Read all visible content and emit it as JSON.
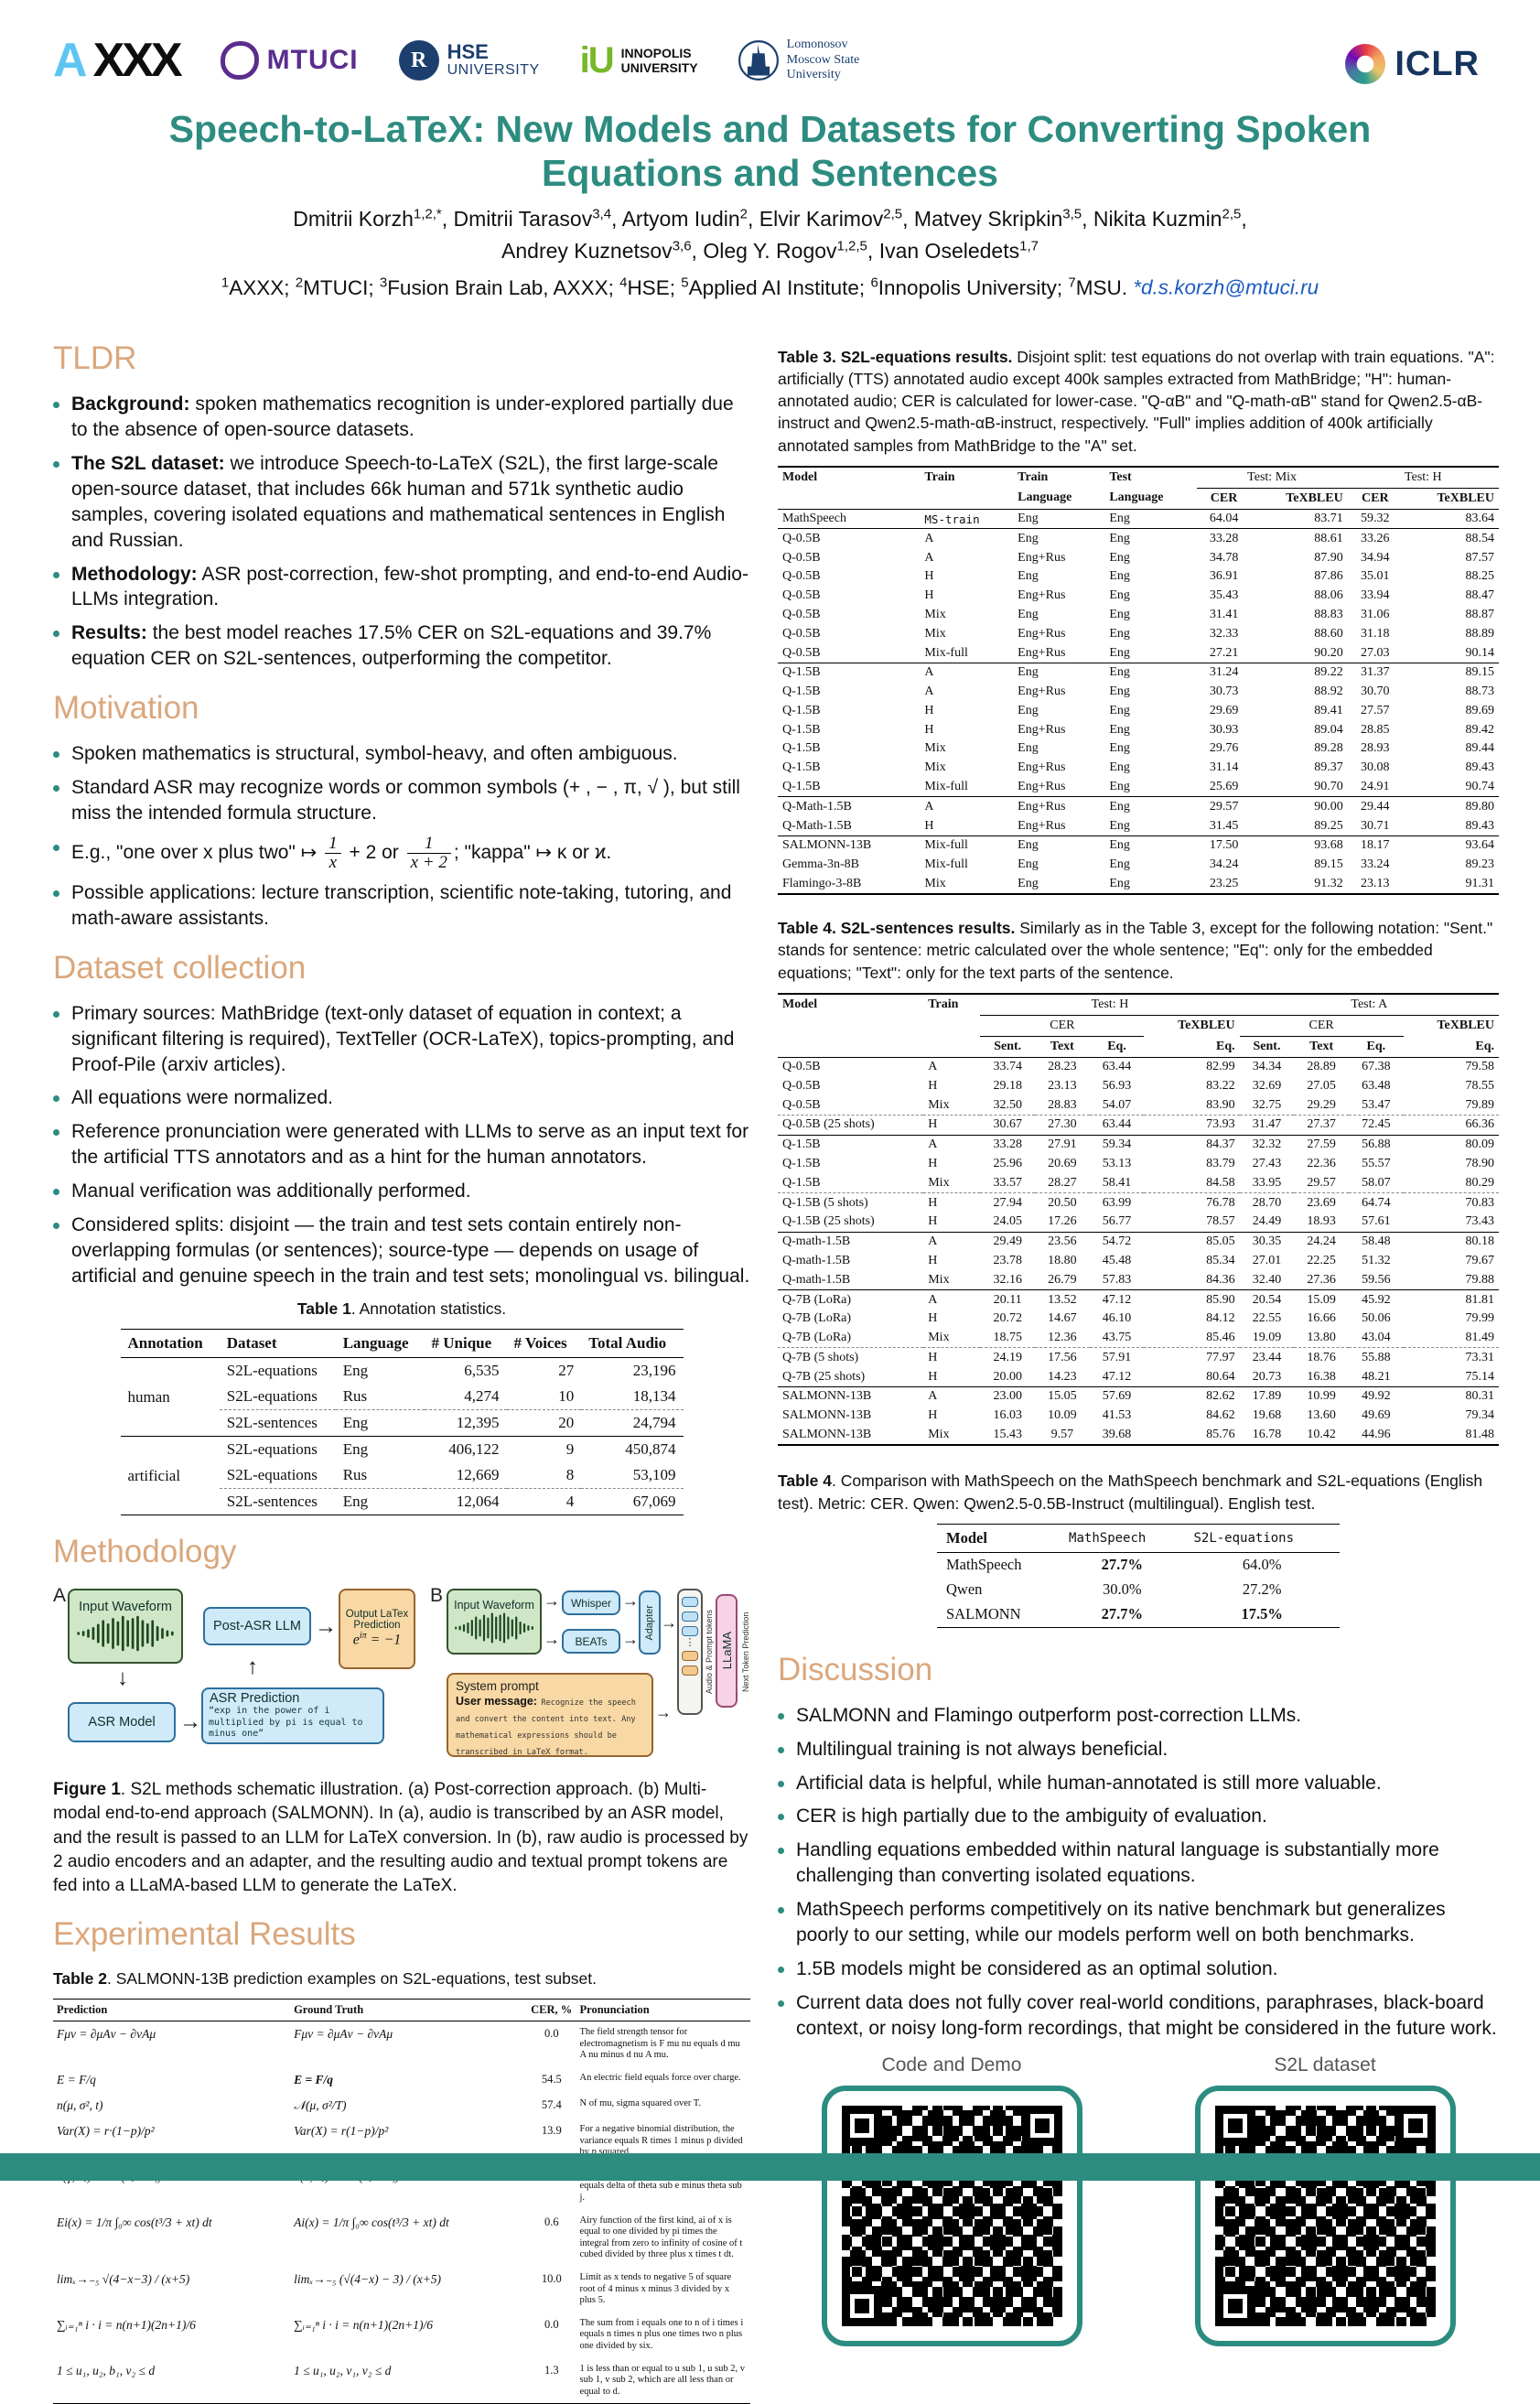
{
  "accent": "#2d8c80",
  "heading_color": "#daa77c",
  "header": {
    "logos": {
      "axxx_a": "A",
      "axxx_rest": "XXX",
      "mtuci": "MTUCI",
      "hse1": "HSE",
      "hse2": "UNIVERSITY",
      "inno1": "INNOPOLIS",
      "inno2": "UNIVERSITY",
      "msu1": "Lomonosov",
      "msu2": "Moscow State",
      "msu3": "University",
      "iclr": "ICLR"
    },
    "title1": "Speech-to-LaTeX: New Models and Datasets for Converting Spoken",
    "title2": "Equations and Sentences",
    "authors1": [
      {
        "n": "Dmitrii Korzh",
        "s": "1,2,*"
      },
      {
        "n": "Dmitrii Tarasov",
        "s": "3,4"
      },
      {
        "n": "Artyom Iudin",
        "s": "2"
      },
      {
        "n": "Elvir Karimov",
        "s": "2,5"
      },
      {
        "n": "Matvey Skripkin",
        "s": "3,5"
      },
      {
        "n": "Nikita Kuzmin",
        "s": "2,5"
      }
    ],
    "authors2": [
      {
        "n": "Andrey Kuznetsov",
        "s": "3,6"
      },
      {
        "n": "Oleg Y. Rogov",
        "s": "1,2,5"
      },
      {
        "n": "Ivan Oseledets",
        "s": "1,7"
      }
    ],
    "affils": [
      {
        "s": "1",
        "n": "AXXX; "
      },
      {
        "s": "2",
        "n": "MTUCI; "
      },
      {
        "s": "3",
        "n": "Fusion Brain Lab, AXXX; "
      },
      {
        "s": "4",
        "n": "HSE; "
      },
      {
        "s": "5",
        "n": "Applied AI Institute; "
      },
      {
        "s": "6",
        "n": "Innopolis University; "
      },
      {
        "s": "7",
        "n": "MSU. "
      }
    ],
    "email": "*d.s.korzh@mtuci.ru"
  },
  "sections": {
    "tldr": "TLDR",
    "motivation": "Motivation",
    "dataset": "Dataset collection",
    "methodology": "Methodology",
    "results": "Experimental Results",
    "discussion": "Discussion"
  },
  "tldr": {
    "items": [
      {
        "b": "Background:",
        "t": "spoken mathematics recognition is under-explored partially due to the absence of open-source datasets."
      },
      {
        "b": "The S2L dataset:",
        "t": "we introduce Speech-to-LaTeX (S2L), the first large-scale open-source dataset, that includes 66k human and 571k synthetic audio samples, covering isolated equations and mathematical sentences in English and Russian."
      },
      {
        "b": "Methodology:",
        "t": "ASR post-correction, few-shot prompting, and end-to-end Audio-LLMs integration."
      },
      {
        "b": "Results:",
        "t": "the best model reaches 17.5% CER on S2L-equations and 39.7% equation CER on S2L-sentences, outperforming the competitor."
      }
    ]
  },
  "motivation": {
    "items": [
      {
        "t": "Spoken mathematics is structural, symbol-heavy, and often ambiguous."
      },
      {
        "t": "Standard ASR may recognize words or common symbols (+ , − , π, √ ), but still miss the intended formula structure."
      },
      {
        "m": {
          "t1": "E.g., \"one over x plus two\"  ↦ ",
          "f1": {
            "n": "1",
            "d": "x"
          },
          "t2": " + 2 or ",
          "f2": {
            "n": "1",
            "d": "x + 2"
          },
          "t3": "; \"kappa\" ↦ κ or ϰ."
        }
      },
      {
        "t": "Possible applications: lecture transcription, scientific note-taking, tutoring, and math-aware assistants."
      }
    ]
  },
  "dataset": {
    "items": [
      {
        "t": "Primary sources: MathBridge (text-only dataset of equation in context; a significant filtering is required), TextTeller (OCR-LaTeX), topics-prompting, and Proof-Pile (arxiv articles)."
      },
      {
        "t": "All equations were normalized."
      },
      {
        "t": "Reference pronunciation were generated with LLMs to serve as an input text for the artificial TTS annotators and as a hint for the human annotators."
      },
      {
        "t": "Manual verification was additionally performed."
      },
      {
        "t": "Considered splits: disjoint — the train and test sets contain entirely non-overlapping formulas (or sentences); source-type — depends on usage of artificial and genuine speech in the train and test sets; monolingual vs. bilingual."
      }
    ]
  },
  "discussion": {
    "items": [
      {
        "t": "SALMONN and Flamingo outperform post-correction LLMs."
      },
      {
        "t": "Multilingual training is not always beneficial."
      },
      {
        "t": "Artificial data is helpful, while human-annotated is still more valuable."
      },
      {
        "t": "CER is high partially due to the ambiguity of evaluation."
      },
      {
        "t": "Handling equations embedded within natural language is substantially more challenging than converting isolated equations."
      },
      {
        "t": "MathSpeech performs competitively on its native benchmark but generalizes poorly to our setting, while our models perform well on both benchmarks."
      },
      {
        "t": "1.5B models might be considered as an optimal solution."
      },
      {
        "t": "Current data does not fully cover real-world conditions, paraphrases, black-board context, or noisy long-form recordings, that might be considered in the future work."
      }
    ]
  },
  "t1": {
    "cap_b": "Table 1",
    "cap_t": ". Annotation statistics.",
    "h": [
      "Annotation",
      "Dataset",
      "Language",
      "# Unique",
      "# Voices",
      "Total Audio"
    ],
    "groups": [
      {
        "label": "human",
        "rows": [
          [
            "S2L-equations",
            "Eng",
            "6,535",
            "27",
            "23,196"
          ],
          [
            "S2L-equations",
            "Rus",
            "4,274",
            "10",
            "18,134"
          ],
          [
            "S2L-sentences",
            "Eng",
            "12,395",
            "20",
            "24,794"
          ]
        ]
      },
      {
        "label": "artificial",
        "rows": [
          [
            "S2L-equations",
            "Eng",
            "406,122",
            "9",
            "450,874"
          ],
          [
            "S2L-equations",
            "Rus",
            "12,669",
            "8",
            "53,109"
          ],
          [
            "S2L-sentences",
            "Eng",
            "12,064",
            "4",
            "67,069"
          ]
        ]
      }
    ]
  },
  "fig": {
    "label_a": "A",
    "label_b": "B",
    "input_waveform": "Input Waveform",
    "asr_model": "ASR Model",
    "post_asr": "Post-ASR LLM",
    "out_title": "Output LaTex Prediction",
    "out_base": "e",
    "out_sup": "iπ",
    "out_eq": "= −1",
    "asr_pred_title": "ASR Prediction",
    "asr_pred_quote": "“exp in the power of i multiplied by pi is equal to minus one”",
    "whisper": "Whisper",
    "beats": "BEATs",
    "adapter": "Adapter",
    "llama": "LLaMA",
    "tokens_label": "Audio & Prompt tokens",
    "next_label": "Next Token Prediction",
    "sys_title": "System prompt",
    "user_label": "User message:",
    "user_text": "Recognize the speech and convert the content into text. Any mathematical expressions should be transcribed in LaTeX format.",
    "cap_b": "Figure 1",
    "cap_t": ". S2L methods schematic illustration. (a) Post-correction approach. (b) Multi-modal end-to-end approach (SALMONN). In (a), audio is transcribed by an ASR model, and the result is passed to an LLM for LaTeX conversion. In (b), raw audio is processed by 2 audio encoders and an adapter, and the resulting audio and textual prompt tokens are fed into a LLaMA-based LLM to generate the LaTeX."
  },
  "t2": {
    "cap_b": "Table 2",
    "cap_t": ". SALMONN-13B prediction examples on S2L-equations, test subset.",
    "h": [
      "Prediction",
      "Ground Truth",
      "CER, %",
      "Pronunciation"
    ],
    "rows": [
      {
        "p": "Fμν = ∂μAν − ∂νAμ",
        "g": "Fμν = ∂μAν − ∂νAμ",
        "gb": false,
        "c": "0.0",
        "pr": "The field strength tensor for electromagnetism is F mu nu equals d mu A nu minus d nu A mu."
      },
      {
        "p": "E = F/q",
        "g": "E = F/q",
        "gb": true,
        "c": "54.5",
        "pr": "An electric field equals force over charge."
      },
      {
        "p": "n(μ, σ², t)",
        "g": "𝒩(μ, σ²/T)",
        "gb": false,
        "c": "57.4",
        "pr": "N of mu, sigma squared over T."
      },
      {
        "p": "Var(X) = r·(1−p)/p²",
        "g": "Var(X) = r(1−p)/p²",
        "gb": false,
        "c": "13.9",
        "pr": "For a negative binomial distribution, the variance equals R times 1 minus p divided by p squared."
      },
      {
        "p": "n(γ, θₑ)/n = δ(θₑ − θⱼ)",
        "g": "n(Γ, θₑ)/n = δ(θₑ − θⱼ)",
        "gb": false,
        "c": "1.1",
        "pr": "N of Gamma, theta sub e divided by N equals delta of theta sub e minus theta sub j."
      },
      {
        "p": "Ei(x) = 1/π ∫₀∞ cos(t³/3 + xt) dt",
        "g": "Ai(x) = 1/π ∫₀∞ cos(t³/3 + xt) dt",
        "gb": false,
        "c": "0.6",
        "pr": "Airy function of the first kind, ai of x is equal to one divided by pi times the integral from zero to infinity of cosine of t cubed divided by three plus x times t dt."
      },
      {
        "p": "limₓ→₋₅ √(4−x−3) / (x+5)",
        "g": "limₓ→₋₅ (√(4−x) − 3) / (x+5)",
        "gb": false,
        "c": "10.0",
        "pr": "Limit as x tends to negative 5 of square root of 4 minus x minus 3 divided by x plus 5."
      },
      {
        "p": "∑ᵢ₌₁ⁿ i · i = n(n+1)(2n+1)/6",
        "g": "∑ᵢ₌₁ⁿ i · i = n(n+1)(2n+1)/6",
        "gb": false,
        "c": "0.0",
        "pr": "The sum from i equals one to n of i times i equals n times n plus one times two n plus one divided by six."
      },
      {
        "p": "1 ≤ u₁, u₂, b₁, v₂ ≤ d",
        "g": "1 ≤ u₁, u₂, v₁, v₂ ≤ d",
        "gb": false,
        "c": "1.3",
        "pr": "1 is less than or equal to u sub 1, u sub 2, v sub 1, v sub 2, which are all less than or equal to d."
      }
    ]
  },
  "t3": {
    "cap_b": "Table 3. S2L-equations results.",
    "cap_t": " Disjoint split: test equations do not overlap with train equations. \"A\": artificially (TTS) annotated audio except 400k samples extracted from MathBridge; \"H\": human-annotated audio; CER is calculated for lower-case. \"Q-αB\" and \"Q-math-αB\" stand for Qwen2.5-αB-instruct and Qwen2.5-math-αB-instruct, respectively. \"Full\" implies addition of 400k artificially annotated samples from MathBridge to the \"A\" set.",
    "h": {
      "model": "Model",
      "train": "Train",
      "language": "Language",
      "test": "Test",
      "mix": "Test: Mix",
      "th": "Test: H",
      "cer": "CER",
      "tex": "TeXBLEU"
    },
    "sections": [
      [
        [
          "MathSpeech",
          "MS-train",
          "Eng",
          "Eng",
          "64.04",
          "83.71",
          "59.32",
          "83.64"
        ]
      ],
      [
        [
          "Q-0.5B",
          "A",
          "Eng",
          "Eng",
          "33.28",
          "88.61",
          "33.26",
          "88.54"
        ],
        [
          "Q-0.5B",
          "A",
          "Eng+Rus",
          "Eng",
          "34.78",
          "87.90",
          "34.94",
          "87.57"
        ],
        [
          "Q-0.5B",
          "H",
          "Eng",
          "Eng",
          "36.91",
          "87.86",
          "35.01",
          "88.25"
        ],
        [
          "Q-0.5B",
          "H",
          "Eng+Rus",
          "Eng",
          "35.43",
          "88.06",
          "33.94",
          "88.47"
        ],
        [
          "Q-0.5B",
          "Mix",
          "Eng",
          "Eng",
          "31.41",
          "88.83",
          "31.06",
          "88.87"
        ],
        [
          "Q-0.5B",
          "Mix",
          "Eng+Rus",
          "Eng",
          "32.33",
          "88.60",
          "31.18",
          "88.89"
        ],
        [
          "Q-0.5B",
          "Mix-full",
          "Eng+Rus",
          "Eng",
          "27.21",
          "90.20",
          "27.03",
          "90.14"
        ]
      ],
      [
        [
          "Q-1.5B",
          "A",
          "Eng",
          "Eng",
          "31.24",
          "89.22",
          "31.37",
          "89.15"
        ],
        [
          "Q-1.5B",
          "A",
          "Eng+Rus",
          "Eng",
          "30.73",
          "88.92",
          "30.70",
          "88.73"
        ],
        [
          "Q-1.5B",
          "H",
          "Eng",
          "Eng",
          "29.69",
          "89.41",
          "27.57",
          "89.69"
        ],
        [
          "Q-1.5B",
          "H",
          "Eng+Rus",
          "Eng",
          "30.93",
          "89.04",
          "28.85",
          "89.42"
        ],
        [
          "Q-1.5B",
          "Mix",
          "Eng",
          "Eng",
          "29.76",
          "89.28",
          "28.93",
          "89.44"
        ],
        [
          "Q-1.5B",
          "Mix",
          "Eng+Rus",
          "Eng",
          "31.14",
          "89.37",
          "30.08",
          "89.43"
        ],
        [
          "Q-1.5B",
          "Mix-full",
          "Eng+Rus",
          "Eng",
          "25.69",
          "90.70",
          "24.91",
          "90.74"
        ]
      ],
      [
        [
          "Q-Math-1.5B",
          "A",
          "Eng+Rus",
          "Eng",
          "29.57",
          "90.00",
          "29.44",
          "89.80"
        ],
        [
          "Q-Math-1.5B",
          "H",
          "Eng+Rus",
          "Eng",
          "31.45",
          "89.25",
          "30.71",
          "89.43"
        ]
      ],
      [
        [
          "SALMONN-13B",
          "Mix-full",
          "Eng",
          "Eng",
          "17.50",
          "93.68",
          "18.17",
          "93.64"
        ],
        [
          "Gemma-3n-8B",
          "Mix-full",
          "Eng",
          "Eng",
          "34.24",
          "89.15",
          "33.24",
          "89.23"
        ],
        [
          "Flamingo-3-8B",
          "Mix",
          "Eng",
          "Eng",
          "23.25",
          "91.32",
          "23.13",
          "91.31"
        ]
      ]
    ]
  },
  "t4": {
    "cap_b": "Table 4. S2L-sentences results.",
    "cap_t": " Similarly as in the Table 3, except for the following notation: \"Sent.\" stands for sentence: metric calculated over the whole sentence; \"Eq\": only for the embedded equations; \"Text\": only for the text parts of the sentence.",
    "h": {
      "model": "Model",
      "train": "Train",
      "testh": "Test: H",
      "testa": "Test: A",
      "cer": "CER",
      "tex": "TeXBLEU",
      "sent": "Sent.",
      "text": "Text",
      "eq": "Eq."
    },
    "sections": [
      [
        [
          "Q-0.5B",
          "A",
          "33.74",
          "28.23",
          "63.44",
          "82.99",
          "34.34",
          "28.89",
          "67.38",
          "79.58"
        ],
        [
          "Q-0.5B",
          "H",
          "29.18",
          "23.13",
          "56.93",
          "83.22",
          "32.69",
          "27.05",
          "63.48",
          "78.55"
        ],
        [
          "Q-0.5B",
          "Mix",
          "32.50",
          "28.83",
          "54.07",
          "83.90",
          "32.75",
          "29.29",
          "53.47",
          "79.89"
        ],
        "---",
        [
          "Q-0.5B (25 shots)",
          "H",
          "30.67",
          "27.30",
          "63.44",
          "73.93",
          "31.47",
          "27.37",
          "72.45",
          "66.36"
        ]
      ],
      [
        [
          "Q-1.5B",
          "A",
          "33.28",
          "27.91",
          "59.34",
          "84.37",
          "32.32",
          "27.59",
          "56.88",
          "80.09"
        ],
        [
          "Q-1.5B",
          "H",
          "25.96",
          "20.69",
          "53.13",
          "83.79",
          "27.43",
          "22.36",
          "55.57",
          "78.90"
        ],
        [
          "Q-1.5B",
          "Mix",
          "33.57",
          "28.27",
          "58.41",
          "84.58",
          "33.95",
          "29.57",
          "58.07",
          "80.29"
        ],
        "---",
        [
          "Q-1.5B (5 shots)",
          "H",
          "27.94",
          "20.50",
          "63.99",
          "76.78",
          "28.70",
          "23.69",
          "64.74",
          "70.83"
        ],
        [
          "Q-1.5B (25 shots)",
          "H",
          "24.05",
          "17.26",
          "56.77",
          "78.57",
          "24.49",
          "18.93",
          "57.61",
          "73.43"
        ]
      ],
      [
        [
          "Q-math-1.5B",
          "A",
          "29.49",
          "23.56",
          "54.72",
          "85.05",
          "30.35",
          "24.24",
          "58.48",
          "80.18"
        ],
        [
          "Q-math-1.5B",
          "H",
          "23.78",
          "18.80",
          "45.48",
          "85.34",
          "27.01",
          "22.25",
          "51.32",
          "79.67"
        ],
        [
          "Q-math-1.5B",
          "Mix",
          "32.16",
          "26.79",
          "57.83",
          "84.36",
          "32.40",
          "27.36",
          "59.56",
          "79.88"
        ]
      ],
      [
        [
          "Q-7B (LoRa)",
          "A",
          "20.11",
          "13.52",
          "47.12",
          "85.90",
          "20.54",
          "15.09",
          "45.92",
          "81.81"
        ],
        [
          "Q-7B (LoRa)",
          "H",
          "20.72",
          "14.67",
          "46.10",
          "84.12",
          "22.55",
          "16.66",
          "50.06",
          "79.99"
        ],
        [
          "Q-7B (LoRa)",
          "Mix",
          "18.75",
          "12.36",
          "43.75",
          "85.46",
          "19.09",
          "13.80",
          "43.04",
          "81.49"
        ],
        "---",
        [
          "Q-7B (5 shots)",
          "H",
          "24.19",
          "17.56",
          "57.91",
          "77.97",
          "23.44",
          "18.76",
          "55.88",
          "73.31"
        ],
        [
          "Q-7B (25 shots)",
          "H",
          "20.00",
          "14.23",
          "47.12",
          "80.64",
          "20.73",
          "16.38",
          "48.21",
          "75.14"
        ]
      ],
      [
        [
          "SALMONN-13B",
          "A",
          "23.00",
          "15.05",
          "57.69",
          "82.62",
          "17.89",
          "10.99",
          "49.92",
          "80.31"
        ],
        [
          "SALMONN-13B",
          "H",
          "16.03",
          "10.09",
          "41.53",
          "84.62",
          "19.68",
          "13.60",
          "49.69",
          "79.34"
        ],
        [
          "SALMONN-13B",
          "Mix",
          "15.43",
          "9.57",
          "39.68",
          "85.76",
          "16.78",
          "10.42",
          "44.96",
          "81.48"
        ]
      ]
    ]
  },
  "t5": {
    "cap_b": "Table 4",
    "cap_t": ". Comparison with MathSpeech on the MathSpeech benchmark and S2L-equations (English test). Metric: CER. Qwen: Qwen2.5-0.5B-Instruct (multilingual). English test.",
    "h": [
      "Model",
      "MathSpeech",
      "S2L-equations"
    ],
    "rows": [
      [
        "MathSpeech",
        "27.7%",
        "64.0%"
      ],
      [
        "Qwen",
        "30.0%",
        "27.2%"
      ],
      [
        "SALMONN",
        "27.7%",
        "17.5%"
      ]
    ],
    "bold": [
      [
        true,
        false
      ],
      [
        false,
        false
      ],
      [
        true,
        true
      ]
    ]
  },
  "qr": {
    "code_label": "Code and Demo",
    "data_label": "S2L dataset"
  }
}
